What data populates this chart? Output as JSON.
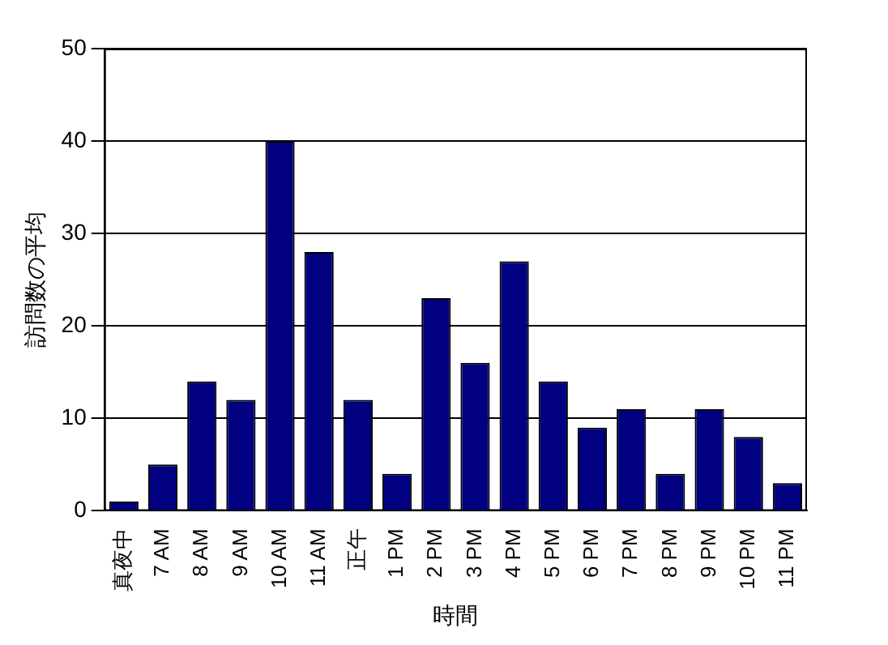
{
  "chart_data": {
    "type": "bar",
    "xlabel": "時間",
    "ylabel": "訪問数の平均",
    "categories": [
      "真夜中",
      "7 AM",
      "8 AM",
      "9 AM",
      "10 AM",
      "11 AM",
      "正午",
      "1 PM",
      "2 PM",
      "3 PM",
      "4 PM",
      "5 PM",
      "6 PM",
      "7 PM",
      "8 PM",
      "9 PM",
      "10 PM",
      "11 PM"
    ],
    "values": [
      1,
      5,
      14,
      12,
      40,
      28,
      12,
      4,
      23,
      16,
      27,
      14,
      9,
      11,
      4,
      11,
      8,
      3
    ],
    "color": "#000080",
    "ylim": [
      0,
      50
    ],
    "yticks": [
      0,
      10,
      20,
      30,
      40,
      50
    ],
    "grid": "y",
    "legend": false
  }
}
